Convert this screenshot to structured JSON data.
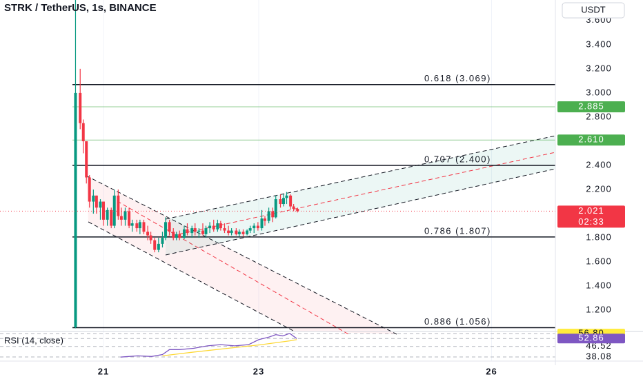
{
  "chart_data": [
    {
      "type": "candlestick",
      "title": "STRK / TetherUS, 1s, BINANCE",
      "currency": "USDT",
      "xlim": [
        19.667,
        26.822
      ],
      "xticks": [
        21,
        23,
        26
      ],
      "ylim": [
        1.03,
        3.77
      ],
      "yticks": [
        {
          "value": 3.6,
          "label": "3.600"
        },
        {
          "value": 3.4,
          "label": "3.400"
        },
        {
          "value": 3.2,
          "label": "3.200"
        },
        {
          "value": 3.0,
          "label": "3.000"
        },
        {
          "value": 2.8,
          "label": "2.800"
        },
        {
          "value": 2.4,
          "label": "2.400"
        },
        {
          "value": 2.2,
          "label": "2.200"
        },
        {
          "value": 1.8,
          "label": "1.800"
        },
        {
          "value": 1.6,
          "label": "1.600"
        },
        {
          "value": 1.4,
          "label": "1.400"
        },
        {
          "value": 1.2,
          "label": "1.200"
        }
      ],
      "up_color": "#089981",
      "down_color": "#f23645",
      "grid": true,
      "series": {
        "x": [
          20.64,
          20.7,
          20.74,
          20.78,
          20.82,
          20.87,
          20.91,
          20.96,
          21.0,
          21.05,
          21.1,
          21.14,
          21.19,
          21.23,
          21.28,
          21.33,
          21.37,
          21.43,
          21.47,
          21.52,
          21.57,
          21.61,
          21.66,
          21.71,
          21.76,
          21.8,
          21.85,
          21.9,
          21.94,
          21.98,
          22.04,
          22.08,
          22.14,
          22.18,
          22.23,
          22.28,
          22.32,
          22.37,
          22.42,
          22.47,
          22.51,
          22.56,
          22.61,
          22.65,
          22.71,
          22.75,
          22.8,
          22.85,
          22.89,
          22.94,
          22.99,
          23.04,
          23.08,
          23.13,
          23.18,
          23.22,
          23.28,
          23.32,
          23.36,
          23.41,
          23.45,
          23.5
        ],
        "open": [
          1.06,
          3.0,
          2.75,
          2.6,
          2.3,
          2.1,
          2.15,
          2.05,
          2.1,
          1.95,
          2.03,
          1.9,
          2.15,
          1.98,
          1.95,
          2.02,
          1.9,
          1.92,
          1.88,
          1.93,
          1.85,
          1.82,
          1.78,
          1.7,
          1.75,
          1.8,
          1.93,
          1.85,
          1.8,
          1.83,
          1.8,
          1.87,
          1.84,
          1.88,
          1.85,
          1.86,
          1.83,
          1.88,
          1.9,
          1.87,
          1.92,
          1.88,
          1.86,
          1.84,
          1.86,
          1.83,
          1.85,
          1.83,
          1.86,
          1.88,
          1.9,
          1.88,
          1.96,
          1.94,
          2.02,
          1.97,
          2.12,
          2.08,
          2.13,
          2.15,
          2.06,
          2.04
        ],
        "high": [
          3.77,
          3.2,
          2.78,
          2.6,
          2.32,
          2.2,
          2.15,
          2.12,
          2.1,
          2.05,
          2.05,
          2.2,
          2.2,
          2.05,
          2.05,
          2.05,
          1.95,
          1.95,
          1.95,
          1.95,
          1.9,
          1.85,
          1.8,
          1.8,
          1.85,
          1.97,
          1.95,
          1.88,
          1.85,
          1.86,
          1.9,
          1.92,
          1.9,
          1.92,
          1.88,
          1.92,
          1.9,
          1.93,
          1.95,
          1.95,
          1.94,
          1.92,
          1.9,
          1.88,
          1.88,
          1.87,
          1.87,
          1.87,
          1.9,
          1.92,
          1.93,
          2.03,
          1.98,
          2.05,
          2.05,
          2.15,
          2.16,
          2.16,
          2.18,
          2.16,
          2.08,
          2.05
        ],
        "low": [
          1.05,
          2.7,
          2.5,
          2.25,
          2.05,
          2.0,
          2.0,
          1.95,
          1.9,
          1.9,
          1.88,
          1.88,
          1.95,
          1.9,
          1.9,
          1.88,
          1.85,
          1.85,
          1.83,
          1.83,
          1.78,
          1.75,
          1.68,
          1.68,
          1.72,
          1.78,
          1.82,
          1.78,
          1.78,
          1.78,
          1.79,
          1.82,
          1.8,
          1.82,
          1.8,
          1.82,
          1.8,
          1.84,
          1.85,
          1.85,
          1.86,
          1.84,
          1.82,
          1.82,
          1.82,
          1.81,
          1.81,
          1.82,
          1.84,
          1.84,
          1.86,
          1.86,
          1.9,
          1.92,
          1.93,
          1.96,
          2.05,
          2.06,
          2.08,
          2.04,
          2.02,
          2.01
        ],
        "close": [
          3.0,
          2.75,
          2.6,
          2.3,
          2.1,
          2.15,
          2.05,
          2.1,
          1.95,
          2.03,
          1.9,
          2.15,
          1.98,
          1.95,
          2.02,
          1.9,
          1.92,
          1.88,
          1.93,
          1.85,
          1.82,
          1.78,
          1.7,
          1.75,
          1.8,
          1.93,
          1.85,
          1.8,
          1.83,
          1.8,
          1.87,
          1.84,
          1.88,
          1.85,
          1.86,
          1.83,
          1.88,
          1.9,
          1.87,
          1.92,
          1.88,
          1.86,
          1.84,
          1.86,
          1.83,
          1.85,
          1.83,
          1.86,
          1.88,
          1.9,
          1.88,
          1.96,
          1.94,
          2.02,
          1.97,
          2.12,
          2.08,
          2.13,
          2.15,
          2.06,
          2.04,
          2.021
        ]
      },
      "fib_levels": [
        {
          "label": "0.618 (3.069)",
          "value": 3.069
        },
        {
          "label": "0.707 (2.400)",
          "value": 2.4
        },
        {
          "label": "0.786 (1.807)",
          "value": 1.807
        },
        {
          "label": "0.886 (1.056)",
          "value": 1.056
        }
      ],
      "alert_lines": [
        {
          "value": 2.885,
          "color": "#4caf50"
        },
        {
          "value": 2.61,
          "label": "2.610",
          "color": "#4caf50"
        }
      ],
      "last_price": {
        "value": 2.021,
        "countdown": "02:33",
        "color": "#f23645"
      }
    },
    {
      "type": "line",
      "title": "RSI (14, close)",
      "xlim": [
        19.667,
        26.822
      ],
      "ylim": [
        37,
        58
      ],
      "yticks": [
        46.52,
        38.08
      ],
      "value_markers": [
        {
          "value": 56.8,
          "label": "56.80",
          "color": "#ffeb3b"
        },
        {
          "value": 52.86,
          "color": "#7e57c2"
        }
      ],
      "series": [
        {
          "color": "#7e57c2",
          "x": [
            21.22,
            21.44,
            21.62,
            21.76,
            21.85,
            21.98,
            22.16,
            22.34,
            22.51,
            22.69,
            22.87,
            23.0,
            23.13,
            23.22,
            23.31,
            23.4,
            23.49
          ],
          "values": [
            38.0,
            39.0,
            38.5,
            40.0,
            44.0,
            44.0,
            45.0,
            47.0,
            48.0,
            47.0,
            48.0,
            52.0,
            54.0,
            56.0,
            55.0,
            57.0,
            52.86
          ]
        },
        {
          "color": "#fdd835",
          "x": [
            21.76,
            22.16,
            22.6,
            23.04,
            23.4,
            23.49
          ],
          "values": [
            39.0,
            42.0,
            45.0,
            48.0,
            51.0,
            52.0
          ]
        }
      ]
    }
  ]
}
